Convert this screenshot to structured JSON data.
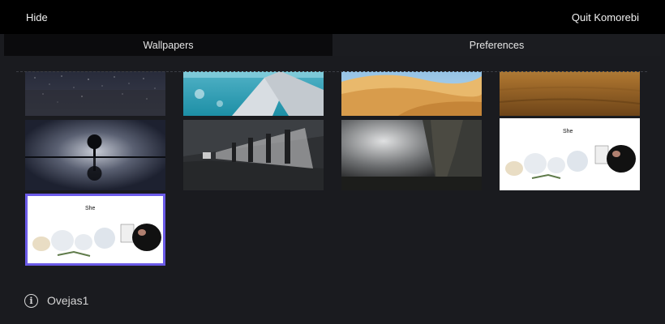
{
  "topbar": {
    "hide_label": "Hide",
    "quit_label": "Quit Komorebi"
  },
  "tabs": [
    {
      "label": "Wallpapers",
      "active": true
    },
    {
      "label": "Preferences",
      "active": false
    }
  ],
  "wallpapers": [
    {
      "name": "starry-sky",
      "selected": false
    },
    {
      "name": "airplane-wing",
      "selected": false
    },
    {
      "name": "desert-dunes",
      "selected": false
    },
    {
      "name": "brown-sand",
      "selected": false
    },
    {
      "name": "tree-reflection",
      "selected": false
    },
    {
      "name": "tunnel",
      "selected": false
    },
    {
      "name": "foggy-cliff",
      "selected": false
    },
    {
      "name": "sheep-cartoon",
      "selected": false
    },
    {
      "name": "sheep-cartoon-selected",
      "selected": true
    }
  ],
  "footer": {
    "current_wallpaper": "Ovejas1",
    "info_icon": "info-icon"
  },
  "colors": {
    "accent": "#6b5be8",
    "background": "#1a1b1f",
    "topbar": "#000000"
  }
}
